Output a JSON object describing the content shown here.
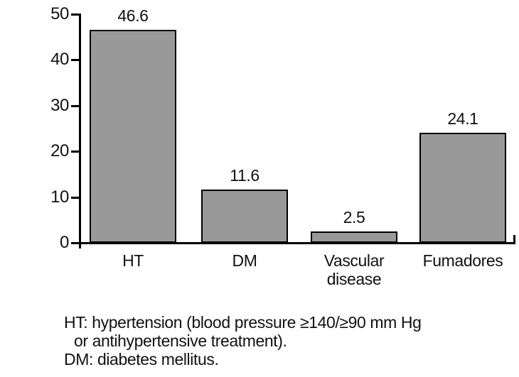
{
  "chart_data": {
    "type": "bar",
    "categories": [
      "HT",
      "DM",
      "Vascular disease",
      "Fumadores"
    ],
    "values": [
      46.6,
      11.6,
      2.5,
      24.1
    ],
    "value_labels": [
      "46.6",
      "11.6",
      "2.5",
      "24.1"
    ],
    "title": "",
    "xlabel": "",
    "ylabel": "",
    "ylim": [
      0,
      50
    ],
    "yticks": [
      0,
      10,
      20,
      30,
      40,
      50
    ],
    "grid": false,
    "legend": false,
    "bar_color": "#999999",
    "bar_border_color": "#000000",
    "axis_color": "#000000"
  },
  "footnote": {
    "line1": "HT: hypertension (blood pressure ≥140/≥90 mm Hg",
    "line2": "or antihypertensive treatment).",
    "line3": "DM: diabetes mellitus."
  }
}
